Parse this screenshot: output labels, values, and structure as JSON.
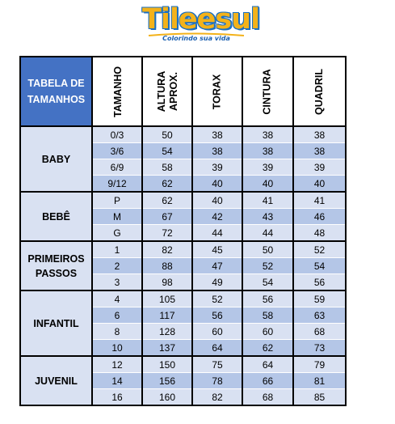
{
  "logo": {
    "name": "Tileesul",
    "tagline": "Colorindo sua vida",
    "colors": {
      "fill": "#f3b21a",
      "outline": "#1a6fc2",
      "tagline": "#1a5fb0"
    }
  },
  "table": {
    "title": "TABELA DE TAMANHOS",
    "columns": [
      "TAMANHO",
      "ALTURA APROX.",
      "TORAX",
      "CINTURA",
      "QUADRIL"
    ],
    "colors": {
      "header": "#4472c4",
      "light": "#d9e1f2",
      "dark": "#b4c6e7"
    },
    "groups": [
      {
        "name": "BABY",
        "rows": [
          [
            "0/3",
            "50",
            "38",
            "38",
            "38"
          ],
          [
            "3/6",
            "54",
            "38",
            "38",
            "38"
          ],
          [
            "6/9",
            "58",
            "39",
            "39",
            "39"
          ],
          [
            "9/12",
            "62",
            "40",
            "40",
            "40"
          ]
        ]
      },
      {
        "name": "BEBÊ",
        "rows": [
          [
            "P",
            "62",
            "40",
            "41",
            "41"
          ],
          [
            "M",
            "67",
            "42",
            "43",
            "46"
          ],
          [
            "G",
            "72",
            "44",
            "44",
            "48"
          ]
        ]
      },
      {
        "name": "PRIMEIROS PASSOS",
        "rows": [
          [
            "1",
            "82",
            "45",
            "50",
            "52"
          ],
          [
            "2",
            "88",
            "47",
            "52",
            "54"
          ],
          [
            "3",
            "98",
            "49",
            "54",
            "56"
          ]
        ]
      },
      {
        "name": "INFANTIL",
        "rows": [
          [
            "4",
            "105",
            "52",
            "56",
            "59"
          ],
          [
            "6",
            "117",
            "56",
            "58",
            "63"
          ],
          [
            "8",
            "128",
            "60",
            "60",
            "68"
          ],
          [
            "10",
            "137",
            "64",
            "62",
            "73"
          ]
        ]
      },
      {
        "name": "JUVENIL",
        "rows": [
          [
            "12",
            "150",
            "75",
            "64",
            "79"
          ],
          [
            "14",
            "156",
            "78",
            "66",
            "81"
          ],
          [
            "16",
            "160",
            "82",
            "68",
            "85"
          ]
        ]
      }
    ]
  }
}
